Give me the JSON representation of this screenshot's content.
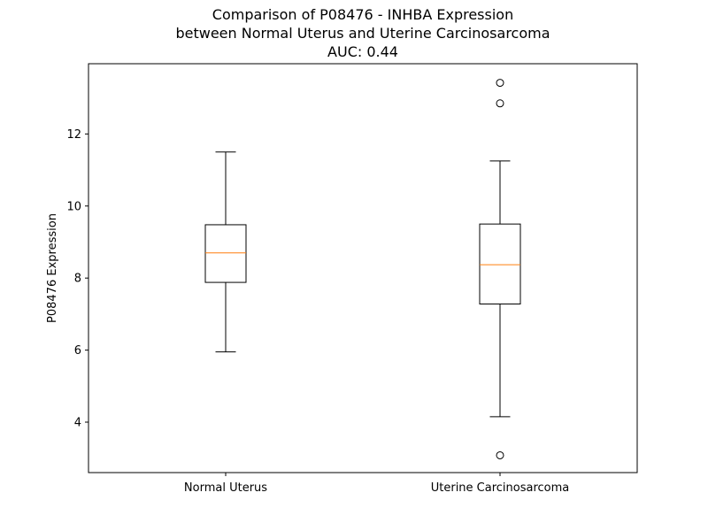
{
  "chart_data": {
    "type": "box",
    "title_lines": [
      "Comparison of P08476 - INHBA Expression",
      "between Normal Uterus and Uterine Carcinosarcoma",
      "AUC: 0.44"
    ],
    "xlabel": "",
    "ylabel": "P08476 Expression",
    "ylim": [
      2.6,
      13.95
    ],
    "yticks": [
      4,
      6,
      8,
      10,
      12
    ],
    "categories": [
      "Normal Uterus",
      "Uterine Carcinosarcoma"
    ],
    "boxes": [
      {
        "category": "Normal Uterus",
        "whisker_low": 5.95,
        "q1": 7.88,
        "median": 8.7,
        "q3": 9.48,
        "whisker_high": 11.5,
        "outliers": []
      },
      {
        "category": "Uterine Carcinosarcoma",
        "whisker_low": 4.15,
        "q1": 7.28,
        "median": 8.37,
        "q3": 9.5,
        "whisker_high": 11.25,
        "outliers": [
          13.42,
          12.85,
          3.08
        ]
      }
    ],
    "median_color": "#ff7f0e",
    "box_color": "#000000",
    "grid": false,
    "legend": "none"
  }
}
